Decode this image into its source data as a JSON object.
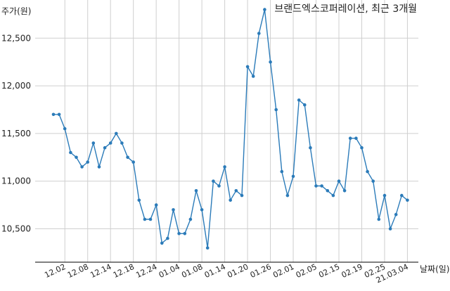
{
  "chart_data": {
    "type": "line",
    "title": "브랜드엑스코퍼레이션, 최근 3개월",
    "ylabel": "주가(원)",
    "xlabel": "날짜(일)",
    "ylim": [
      10150,
      12900
    ],
    "yticks": [
      10500,
      11000,
      11500,
      12000,
      12500
    ],
    "ytick_labels": [
      "10,500",
      "11,000",
      "11,500",
      "12,000",
      "12,500"
    ],
    "xtick_labels": [
      "12.02",
      "12.08",
      "12.14",
      "12.18",
      "12.24",
      "01.04",
      "01.08",
      "01.14",
      "01.20",
      "01.26",
      "02.01",
      "02.05",
      "02.15",
      "02.19",
      "02.25",
      "21.03.04"
    ],
    "xtick_index": [
      2,
      6,
      10,
      14,
      18,
      22,
      26,
      30,
      34,
      38,
      42,
      46,
      50,
      54,
      58,
      62
    ],
    "grid": true,
    "color": "#2b7bb9",
    "series": [
      {
        "values": [
          11700,
          11700,
          11550,
          11300,
          11250,
          11150,
          11200,
          11400,
          11150,
          11350,
          11400,
          11500,
          11400,
          11250,
          11200,
          10800,
          10600,
          10600,
          10750,
          10350,
          10400,
          10700,
          10450,
          10450,
          10600,
          10900,
          10700,
          10300,
          11000,
          10950,
          11150,
          10800,
          10900,
          10850,
          12200,
          12100,
          12550,
          12800,
          12250,
          11750,
          11100,
          10850,
          11050,
          11850,
          11800,
          11350,
          10950,
          10950,
          10900,
          10850,
          11000,
          10900,
          11450,
          11450,
          11350,
          11100,
          11000,
          10600,
          10850,
          10500,
          10650,
          10850,
          10800
        ]
      }
    ]
  }
}
